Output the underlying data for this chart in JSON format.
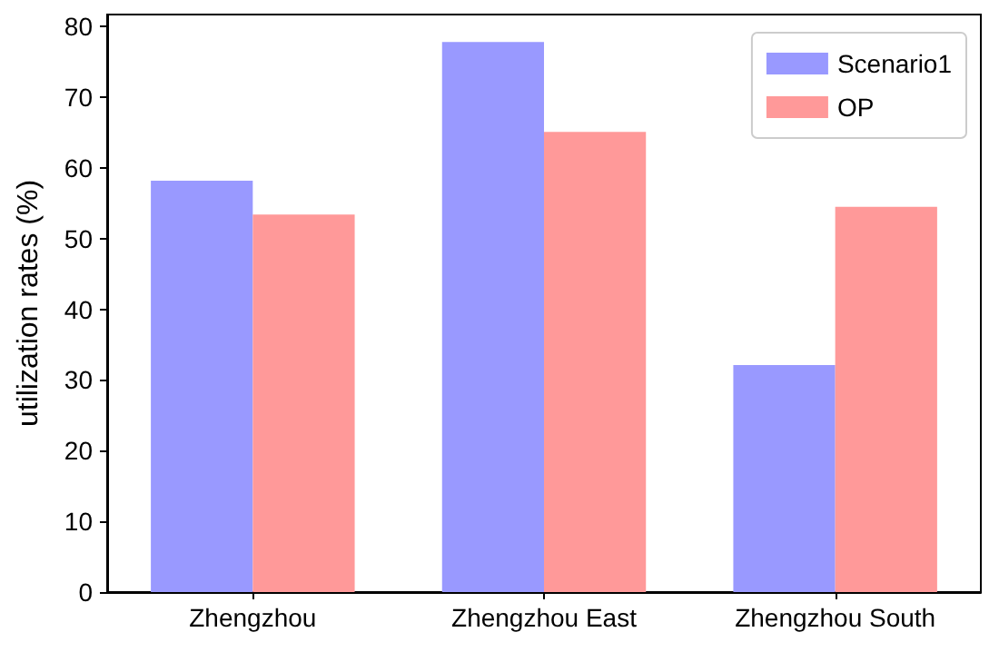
{
  "chart_data": {
    "type": "bar",
    "ylabel": "utilization rates (%)",
    "categories": [
      "Zhengzhou",
      "Zhengzhou East",
      "Zhengzhou South"
    ],
    "series": [
      {
        "name": "Scenario1",
        "color": "#9999ff",
        "values": [
          58.2,
          77.8,
          32.1
        ]
      },
      {
        "name": "OP",
        "color": "#ff9999",
        "values": [
          53.4,
          65.1,
          54.5
        ]
      }
    ],
    "ylim": [
      0,
      81.7
    ],
    "yticks": [
      0,
      10,
      20,
      30,
      40,
      50,
      60,
      70,
      80
    ],
    "grid": false,
    "legend": "top right"
  }
}
